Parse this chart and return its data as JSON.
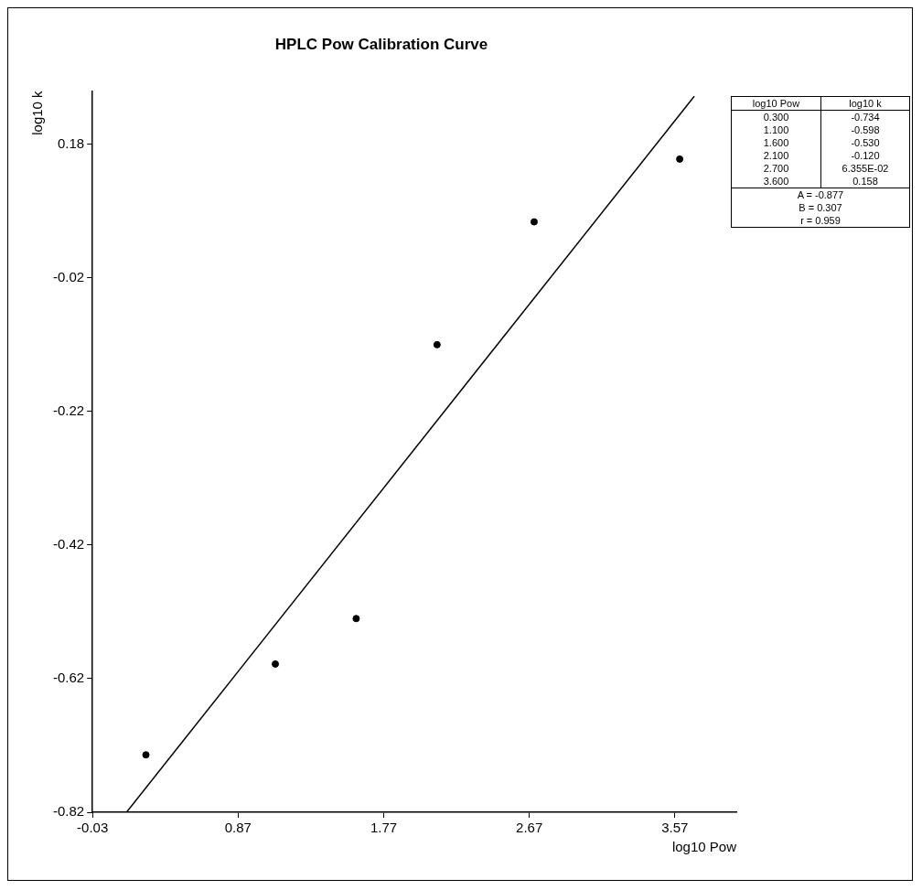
{
  "chart_data": {
    "type": "scatter",
    "title": "HPLC Pow Calibration Curve",
    "xlabel": "log10 Pow",
    "ylabel": "log10 k",
    "series": [
      {
        "color": "#000000",
        "marker": "circle",
        "x": [
          0.3,
          1.1,
          1.6,
          2.1,
          2.7,
          3.6
        ],
        "values": [
          -0.734,
          -0.598,
          -0.53,
          -0.12,
          0.064,
          0.158
        ]
      },
      {
        "type": "line",
        "color": "#000000",
        "marker": "none",
        "line_style": "solid",
        "x": [
          0.18,
          3.69
        ],
        "values": [
          -0.82,
          0.252
        ]
      }
    ],
    "annotations": [
      "0.300",
      "-0.734",
      "1.100",
      "-0.598",
      "1.600",
      "-0.530",
      "2.100",
      "-0.120",
      "2.700",
      "6.355E-02",
      "3.600",
      "0.158",
      "A = -0.877",
      "B = 0.307",
      "r = 0.959"
    ],
    "xlim": [
      -0.03,
      3.95
    ],
    "ylim": [
      -0.82,
      0.26
    ],
    "xticks": [
      -0.03,
      0.87,
      1.77,
      2.67,
      3.57
    ],
    "yticks": [
      -0.82,
      -0.62,
      -0.42,
      -0.22,
      -0.02,
      0.18
    ],
    "grid": false,
    "legend": false
  }
}
